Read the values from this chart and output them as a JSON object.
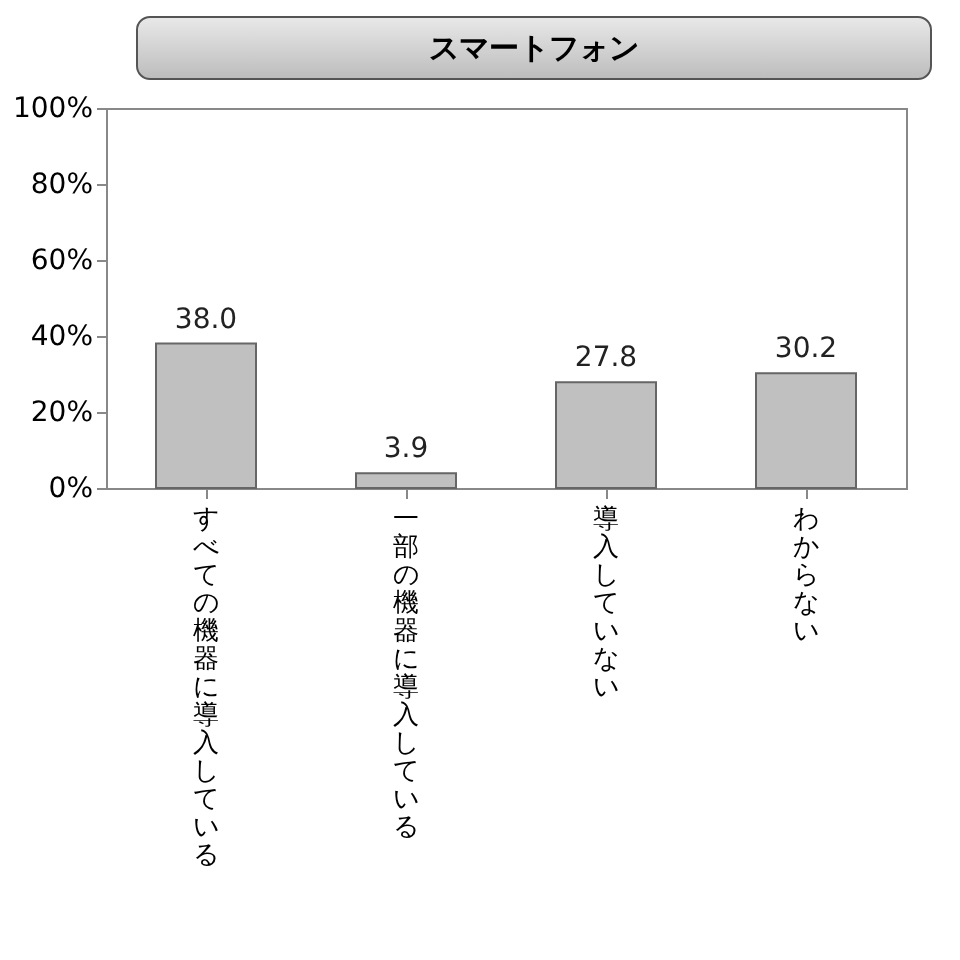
{
  "chart_data": {
    "type": "bar",
    "title": "スマートフォン",
    "categories": [
      "すべての機器に導入している",
      "一部の機器に導入している",
      "導入していない",
      "わからない"
    ],
    "values": [
      38.0,
      3.9,
      27.8,
      30.2
    ],
    "color": "#c0c0c0",
    "value_labels": [
      "38.0",
      "3.9",
      "27.8",
      "30.2"
    ],
    "ylim": [
      0,
      100
    ],
    "yticks": [
      {
        "value": 0,
        "label": "0%"
      },
      {
        "value": 20,
        "label": "20%"
      },
      {
        "value": 40,
        "label": "40%"
      },
      {
        "value": 60,
        "label": "60%"
      },
      {
        "value": 80,
        "label": "80%"
      },
      {
        "value": 100,
        "label": "100%"
      }
    ],
    "grid": false
  }
}
